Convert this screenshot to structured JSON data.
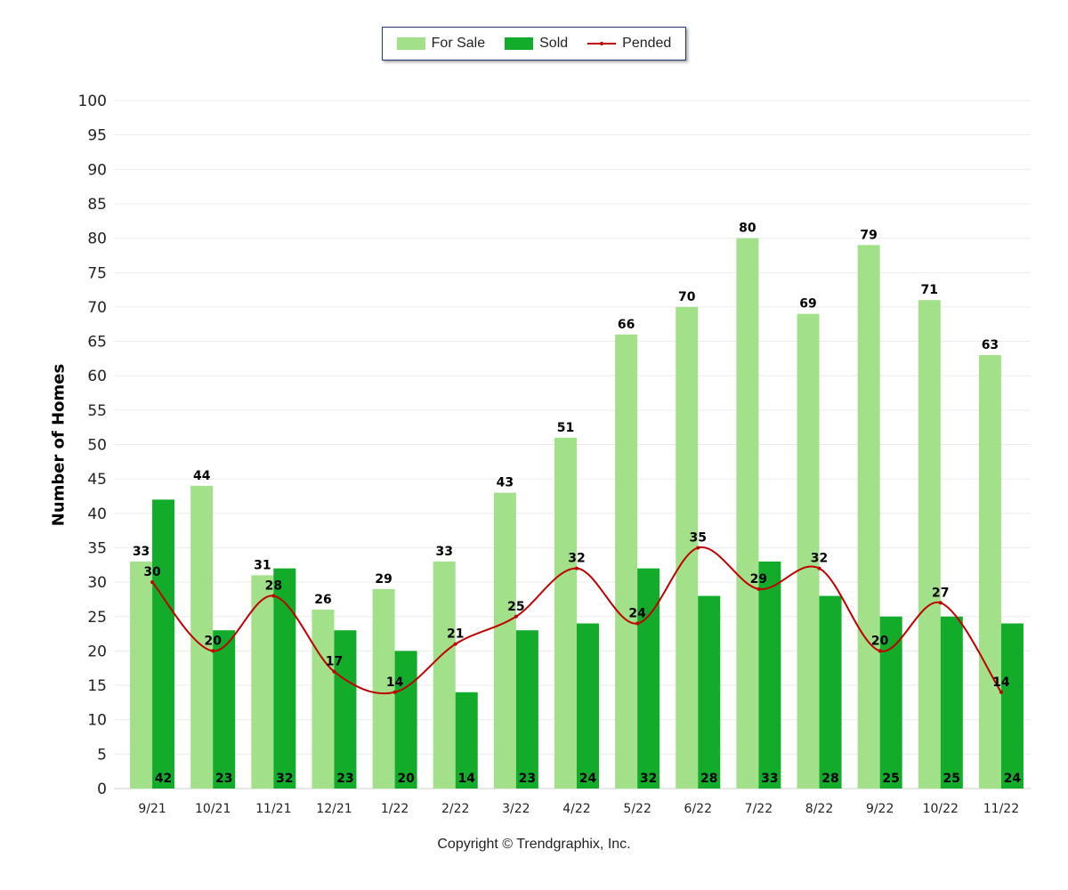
{
  "legend": {
    "for_sale": "For Sale",
    "sold": "Sold",
    "pended": "Pended"
  },
  "copyright": "Copyright © Trendgraphix, Inc.",
  "colors": {
    "for_sale": "#a3e08a",
    "sold": "#12ab2a",
    "pended": "#c00000"
  },
  "chart_data": {
    "type": "bar",
    "categories": [
      "9/21",
      "10/21",
      "11/21",
      "12/21",
      "1/22",
      "2/22",
      "3/22",
      "4/22",
      "5/22",
      "6/22",
      "7/22",
      "8/22",
      "9/22",
      "10/22",
      "11/22"
    ],
    "series": [
      {
        "name": "For Sale",
        "type": "bar",
        "values": [
          33,
          44,
          31,
          26,
          29,
          33,
          43,
          51,
          66,
          70,
          80,
          69,
          79,
          71,
          63
        ]
      },
      {
        "name": "Sold",
        "type": "bar",
        "values": [
          42,
          23,
          32,
          23,
          20,
          14,
          23,
          24,
          32,
          28,
          33,
          28,
          25,
          25,
          24
        ]
      },
      {
        "name": "Pended",
        "type": "line",
        "values": [
          30,
          20,
          28,
          17,
          14,
          21,
          25,
          32,
          24,
          35,
          29,
          32,
          20,
          27,
          14
        ]
      }
    ],
    "ylabel": "Number of Homes",
    "xlabel": "",
    "ylim": [
      0,
      100
    ],
    "yticks": [
      0,
      5,
      10,
      15,
      20,
      25,
      30,
      35,
      40,
      45,
      50,
      55,
      60,
      65,
      70,
      75,
      80,
      85,
      90,
      95,
      100
    ],
    "grid": true,
    "legend_position": "top-center"
  }
}
